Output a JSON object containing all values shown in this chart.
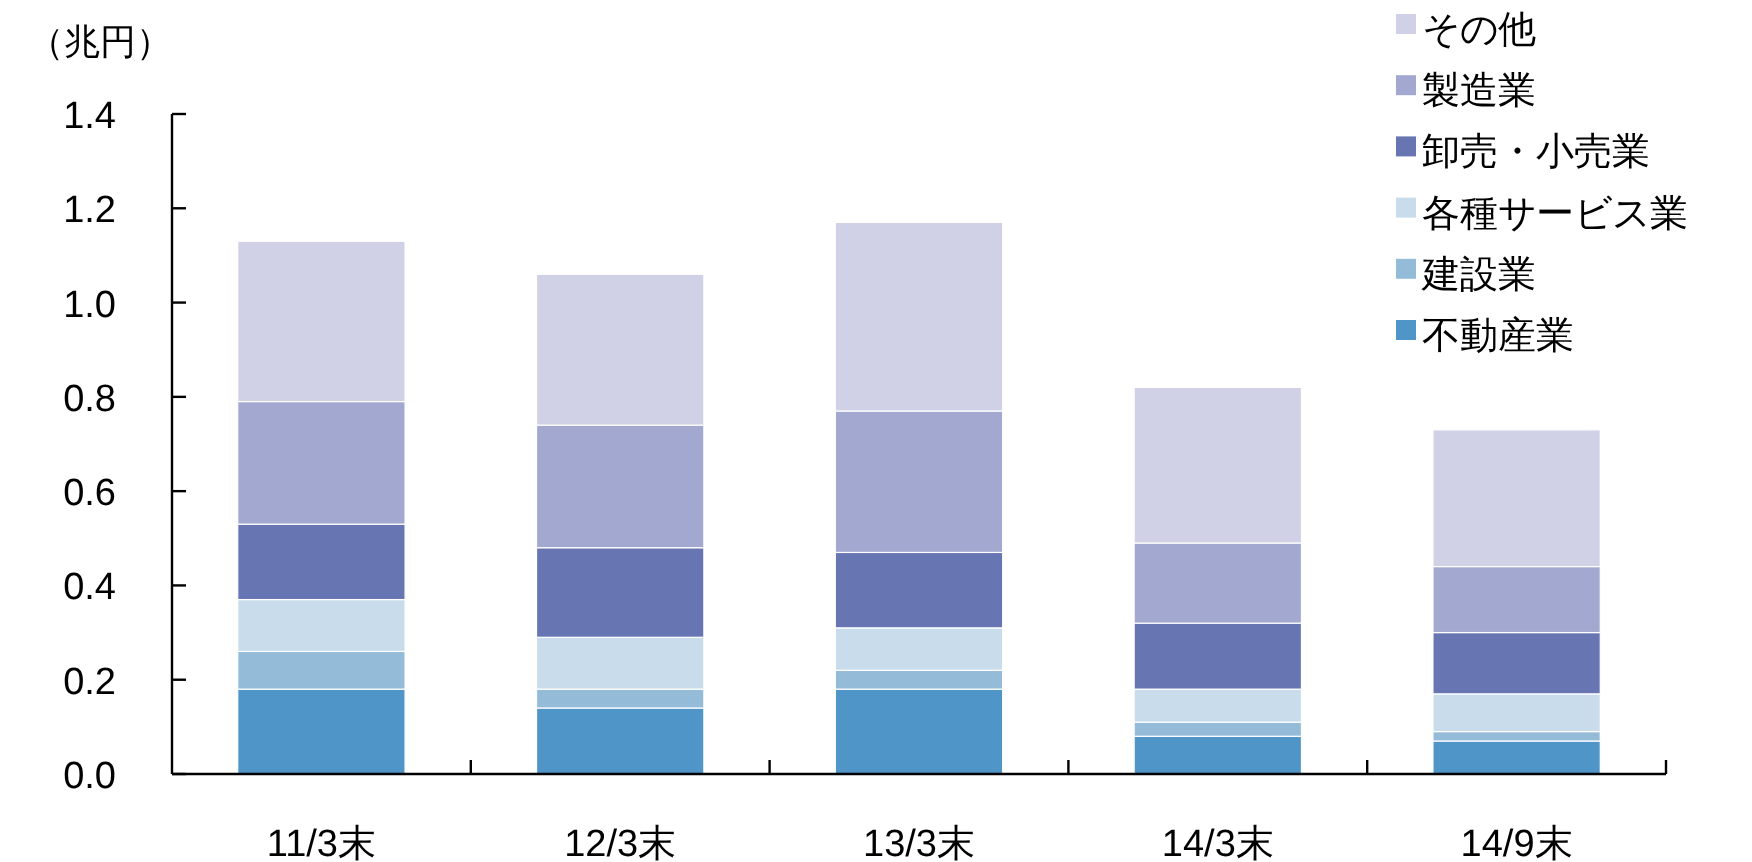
{
  "chart_data": {
    "type": "bar",
    "stacked": true,
    "ylabel": "（兆円）",
    "categories": [
      "11/3末",
      "12/3末",
      "13/3末",
      "14/3末",
      "14/9末"
    ],
    "series": [
      {
        "name": "不動産業",
        "color": "#4f95c8",
        "values": [
          0.18,
          0.14,
          0.18,
          0.08,
          0.07
        ]
      },
      {
        "name": "建設業",
        "color": "#94bcd9",
        "values": [
          0.08,
          0.04,
          0.04,
          0.03,
          0.02
        ]
      },
      {
        "name": "各種サービス業",
        "color": "#c9dcec",
        "values": [
          0.11,
          0.11,
          0.09,
          0.07,
          0.08
        ]
      },
      {
        "name": "卸売・小売業",
        "color": "#6875b3",
        "values": [
          0.16,
          0.19,
          0.16,
          0.14,
          0.13
        ]
      },
      {
        "name": "製造業",
        "color": "#a3a8d0",
        "values": [
          0.26,
          0.26,
          0.3,
          0.17,
          0.14
        ]
      },
      {
        "name": "その他",
        "color": "#d0d0e6",
        "values": [
          0.34,
          0.32,
          0.4,
          0.33,
          0.29
        ]
      }
    ],
    "ylim": [
      0,
      1.4
    ],
    "yticks": [
      {
        "value": 0,
        "label": "0.0"
      },
      {
        "value": 0.2,
        "label": "0.2"
      },
      {
        "value": 0.4,
        "label": "0.4"
      },
      {
        "value": 0.6,
        "label": "0.6"
      },
      {
        "value": 0.8,
        "label": "0.8"
      },
      {
        "value": 1.0,
        "label": "1.0"
      },
      {
        "value": 1.2,
        "label": "1.2"
      },
      {
        "value": 1.4,
        "label": "1.4"
      }
    ],
    "grid": false,
    "legend": "top right"
  }
}
